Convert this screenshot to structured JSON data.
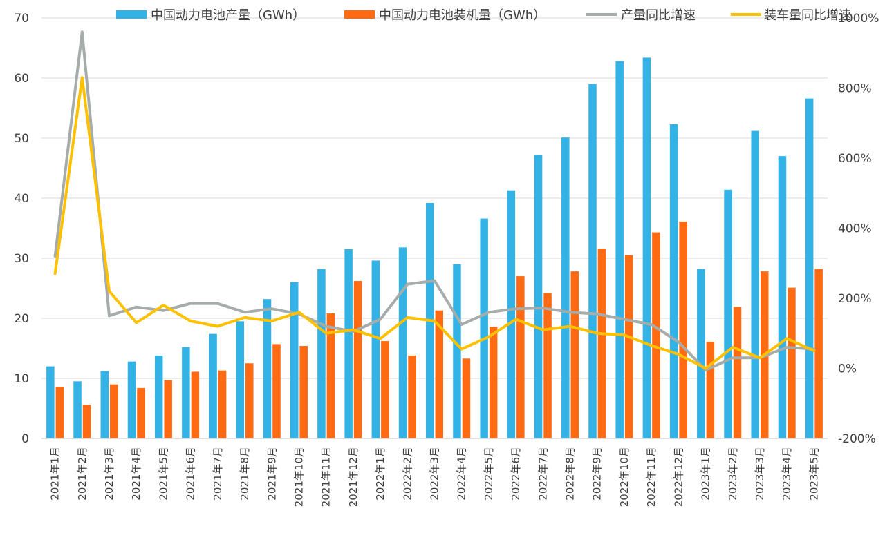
{
  "chart_data": {
    "type": "bar",
    "title": "",
    "categories": [
      "2021年1月",
      "2021年2月",
      "2021年3月",
      "2021年4月",
      "2021年5月",
      "2021年6月",
      "2021年7月",
      "2021年8月",
      "2021年9月",
      "2021年10月",
      "2021年11月",
      "2021年12月",
      "2022年1月",
      "2022年2月",
      "2022年3月",
      "2022年4月",
      "2022年5月",
      "2022年6月",
      "2022年7月",
      "2022年8月",
      "2022年9月",
      "2022年10月",
      "2022年11月",
      "2022年12月",
      "2023年1月",
      "2023年2月",
      "2023年3月",
      "2023年4月",
      "2023年5月"
    ],
    "series": [
      {
        "name": "中国动力电池产量（GWh）",
        "type": "bar",
        "axis": "left",
        "color": "#33B2E5",
        "values": [
          12.0,
          9.5,
          11.2,
          12.8,
          13.8,
          15.2,
          17.4,
          19.5,
          23.2,
          26.0,
          28.2,
          31.5,
          29.6,
          31.8,
          39.2,
          29.0,
          36.6,
          41.3,
          47.2,
          50.1,
          59.0,
          62.8,
          63.4,
          52.3,
          28.2,
          41.4,
          51.2,
          47.0,
          56.6
        ]
      },
      {
        "name": "中国动力电池装机量（GWh）",
        "type": "bar",
        "axis": "left",
        "color": "#FF6A13",
        "values": [
          8.6,
          5.6,
          9.0,
          8.4,
          9.7,
          11.1,
          11.3,
          12.5,
          15.7,
          15.4,
          20.8,
          26.2,
          16.2,
          13.8,
          21.3,
          13.3,
          18.6,
          27.0,
          24.2,
          27.8,
          31.6,
          30.5,
          34.3,
          36.1,
          16.1,
          21.9,
          27.8,
          25.1,
          28.2
        ]
      },
      {
        "name": "产量同比增速",
        "type": "line",
        "axis": "right",
        "color": "#A5ACA9",
        "values": [
          3.2,
          9.6,
          1.5,
          1.75,
          1.65,
          1.85,
          1.85,
          1.6,
          1.7,
          1.55,
          1.2,
          1.05,
          1.4,
          2.4,
          2.5,
          1.25,
          1.6,
          1.7,
          1.72,
          1.6,
          1.55,
          1.4,
          1.25,
          0.75,
          -0.05,
          0.3,
          0.3,
          0.6,
          0.55
        ]
      },
      {
        "name": "装车量同比增速",
        "type": "line",
        "axis": "right",
        "color": "#FFC000",
        "values": [
          2.7,
          8.3,
          2.2,
          1.3,
          1.8,
          1.35,
          1.2,
          1.45,
          1.35,
          1.6,
          1.0,
          1.1,
          0.85,
          1.45,
          1.35,
          0.55,
          0.9,
          1.4,
          1.1,
          1.2,
          1.0,
          0.95,
          0.65,
          0.4,
          0.0,
          0.6,
          0.3,
          0.85,
          0.5
        ]
      }
    ],
    "y_left": {
      "min": 0,
      "max": 70,
      "step": 10,
      "ticks": [
        "0",
        "10",
        "20",
        "30",
        "40",
        "50",
        "60",
        "70"
      ]
    },
    "y_right": {
      "min": -2.0,
      "max": 10.0,
      "step": 2.0,
      "ticks": [
        "-200%",
        "0%",
        "200%",
        "400%",
        "600%",
        "800%",
        "1000%"
      ]
    },
    "grid": true,
    "legend_position": "top"
  }
}
